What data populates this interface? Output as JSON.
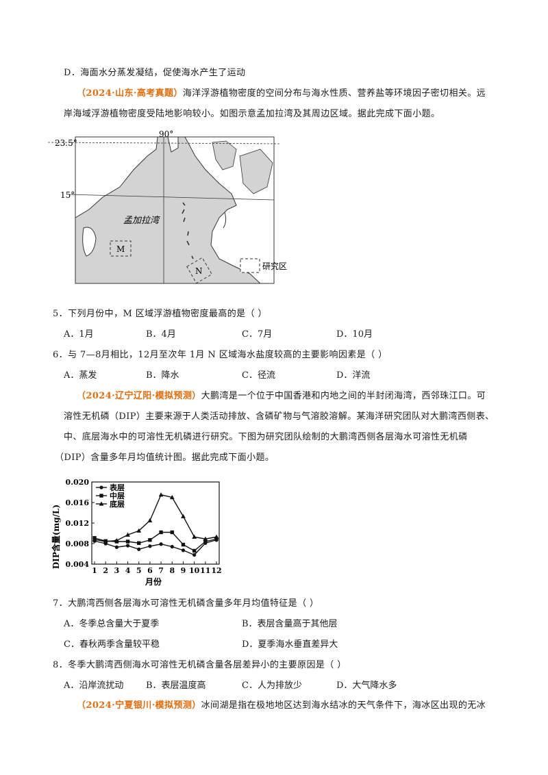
{
  "q_prev_option_d": "D．海面水分蒸发凝结，促使海水产生了运动",
  "block1": {
    "source": "（2024·山东·高考真题）",
    "line1": "海洋浮游植物密度的空间分布与海水性质、营养盐等环境因子密切相关。远",
    "line2": "岸海域浮游植物密度受陆地影响较小。如图示意孟加拉湾及其周边区域。据此完成下面小题。"
  },
  "map": {
    "lat_top": "23.5°",
    "lat_mid": "15°",
    "lon": "90°",
    "bay_label": "孟加拉湾",
    "box_m": "M",
    "box_n": "N",
    "legend_label": "研究区"
  },
  "q5": {
    "stem": "5．下列月份中，M 区域浮游植物密度最高的是（ ）",
    "options": [
      "A．1月",
      "B．4月",
      "C．7月",
      "D．10月"
    ]
  },
  "q6": {
    "stem": "6．与 7—8月相比，12月至次年 1月 N 区域海水盐度较高的主要影响因素是（ ）",
    "options": [
      "A．蒸发",
      "B．降水",
      "C．径流",
      "D．洋流"
    ]
  },
  "block2": {
    "source": "（2024·辽宁辽阳·模拟预测）",
    "line1": "大鹏湾是一个位于中国香港和内地之间的半封闭海湾，西邻珠江口。可",
    "line2": "溶性无机磷（DIP）主要来源于人类活动排放、含磷矿物与气溶胶溶解。某海洋研究团队对大鹏湾西侧表、",
    "line3": "中、底层海水中的可溶性无机磷进行研究。下图为研究团队绘制的大鹏湾西侧各层海水可溶性无机磷",
    "line4": "（DIP）含量多年月均值统计图。据此完成下面小题。"
  },
  "chart_data": {
    "type": "line",
    "x": [
      1,
      2,
      3,
      4,
      5,
      6,
      7,
      8,
      9,
      10,
      11,
      12
    ],
    "xlabel": "月份",
    "ylabel": "DIP含量(mg/L)",
    "ylim": [
      0.004,
      0.02
    ],
    "yticks": [
      "0.004",
      "0.008",
      "0.012",
      "0.016",
      "0.020"
    ],
    "legend_position": "top-left",
    "series": [
      {
        "name": "表层",
        "marker": "circle",
        "values": [
          0.0085,
          0.008,
          0.0073,
          0.0076,
          0.0069,
          0.0075,
          0.0079,
          0.0074,
          0.0067,
          0.0058,
          0.0081,
          0.0087
        ]
      },
      {
        "name": "中层",
        "marker": "square",
        "values": [
          0.0091,
          0.0085,
          0.0084,
          0.0084,
          0.0081,
          0.0087,
          0.0102,
          0.0102,
          0.0078,
          0.0066,
          0.0084,
          0.0089
        ]
      },
      {
        "name": "底层",
        "marker": "triangle",
        "values": [
          0.0088,
          0.0084,
          0.0086,
          0.0097,
          0.0105,
          0.0125,
          0.0175,
          0.017,
          0.0133,
          0.0093,
          0.0089,
          0.0093
        ]
      }
    ]
  },
  "q7": {
    "stem": "7．大鹏湾西侧各层海水可溶性无机磷含量多年月均值特征是（ ）",
    "options": [
      "A．冬季总含量大于夏季",
      "B．表层含量高于其他层",
      "C．春秋两季含量较平稳",
      "D．夏季海水垂直差异大"
    ]
  },
  "q8": {
    "stem": "8．冬季大鹏湾西侧海水可溶性无机磷含量各层差异小的主要原因是（ ）",
    "options": [
      "A．沿岸流扰动",
      "B．表层温度高",
      "C．人为排放少",
      "D．大气降水多"
    ]
  },
  "block3": {
    "source": "（2024·宁夏银川·模拟预测）",
    "line1": "冰间湖是指在极地地区达到海水结冰的天气条件下，海冰区出现的无冰"
  }
}
